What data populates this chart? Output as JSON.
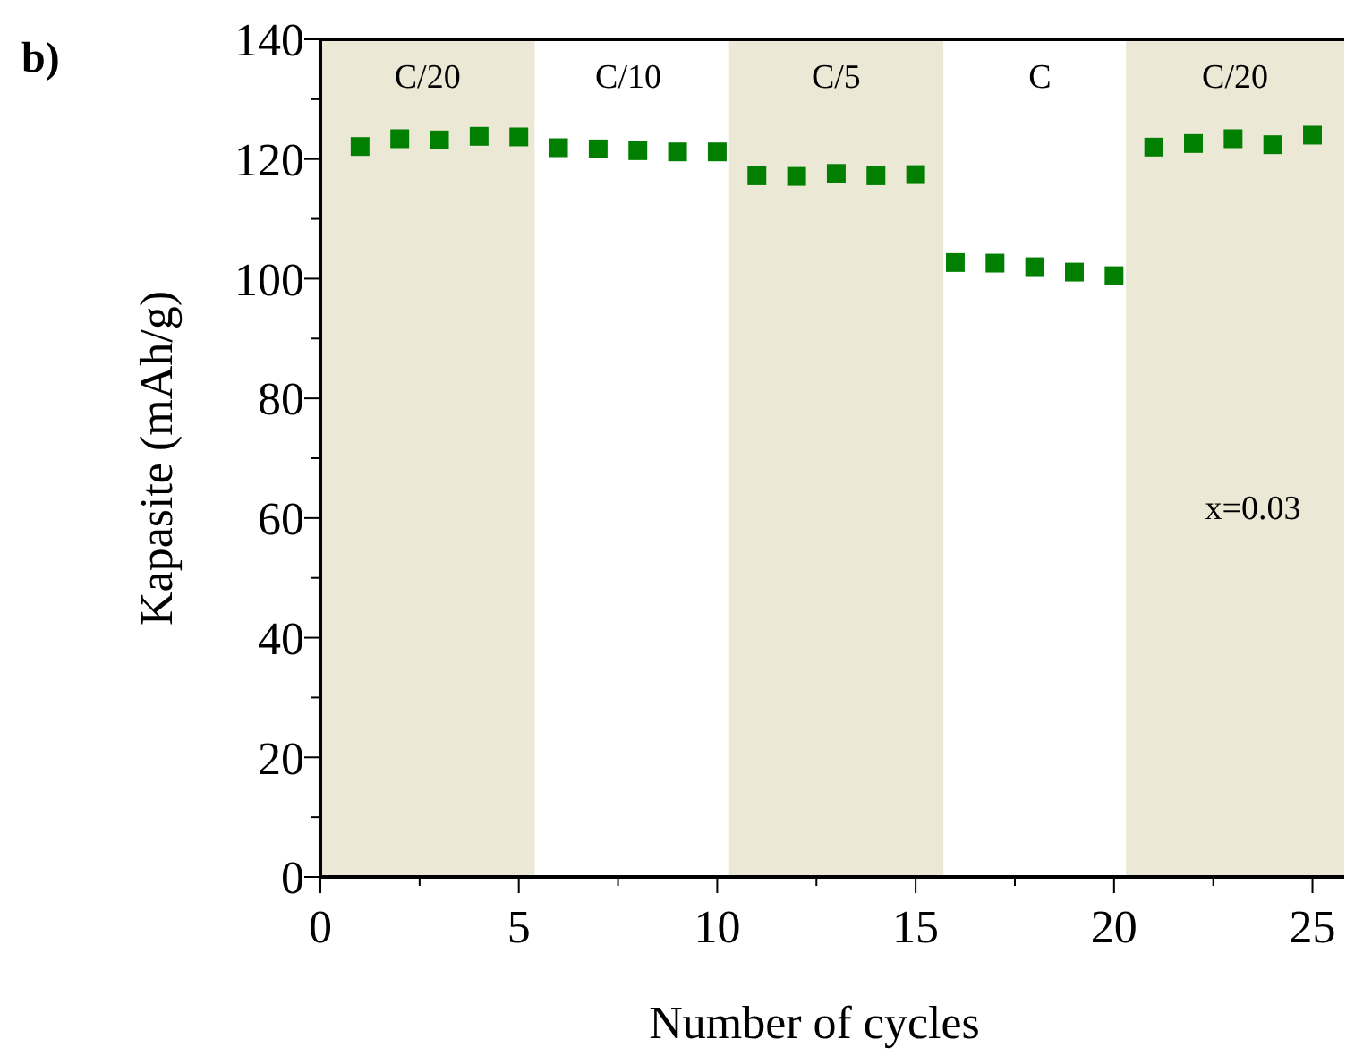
{
  "chart_data": {
    "type": "scatter",
    "xlabel": "Number of cycles",
    "ylabel": "Kapasite (mAh/g)",
    "x": [
      1,
      2,
      3,
      4,
      5,
      6,
      7,
      8,
      9,
      10,
      11,
      12,
      13,
      14,
      15,
      16,
      17,
      18,
      19,
      20,
      21,
      22,
      23,
      24,
      25
    ],
    "series": [
      {
        "color": "#007f00",
        "values": [
          122.1,
          123.4,
          123.2,
          123.8,
          123.7,
          121.9,
          121.7,
          121.4,
          121.2,
          121.2,
          117.2,
          117.1,
          117.6,
          117.2,
          117.4,
          102.7,
          102.6,
          102.0,
          101.1,
          100.5,
          122.0,
          122.6,
          123.4,
          122.4,
          124.0
        ]
      }
    ],
    "marker": "square",
    "grid": false,
    "xlim": [
      0,
      25.8
    ],
    "ylim": [
      0,
      140
    ],
    "xticks": [
      0,
      {
        "value": 2.5,
        "label": null
      },
      5,
      {
        "value": 7.5,
        "label": null
      },
      10,
      {
        "value": 12.5,
        "label": null
      },
      15,
      {
        "value": 17.5,
        "label": null
      },
      20,
      {
        "value": 22.5,
        "label": null
      },
      25
    ],
    "yticks": [
      0,
      {
        "value": 10,
        "label": null
      },
      20,
      {
        "value": 30,
        "label": null
      },
      40,
      {
        "value": 50,
        "label": null
      },
      60,
      {
        "value": 70,
        "label": null
      },
      80,
      {
        "value": 90,
        "label": null
      },
      100,
      {
        "value": 110,
        "label": null
      },
      120,
      {
        "value": 130,
        "label": null
      },
      140
    ],
    "bands": [
      {
        "axis": "x",
        "from": 0,
        "to": 5.4,
        "color": "#ebe9d6",
        "label": "C/20"
      },
      {
        "axis": "x",
        "from": 10.3,
        "to": 15.7,
        "color": "#ebe9d6",
        "label": "C/5"
      },
      {
        "axis": "x",
        "from": 20.3,
        "to": 25.8,
        "color": "#ebe9d6",
        "label": "C/20"
      }
    ],
    "annotations": [
      "b)",
      "C/10",
      "C",
      "x=0.03"
    ]
  }
}
